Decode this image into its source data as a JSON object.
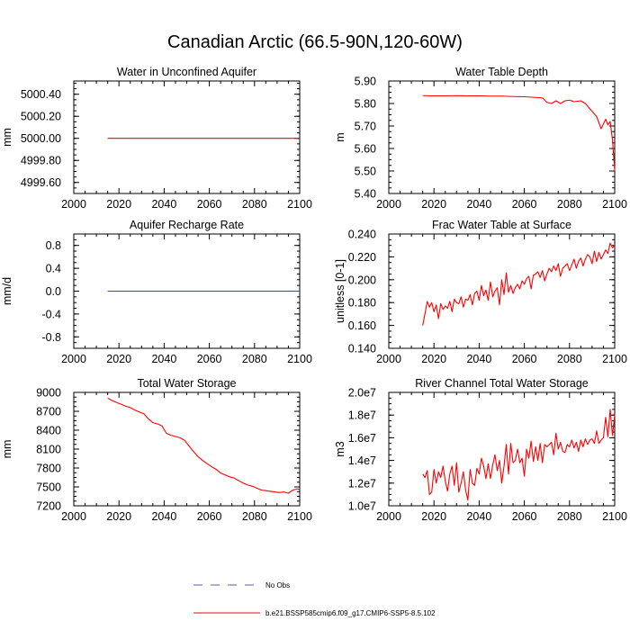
{
  "figure_title": "Canadian Arctic (66.5-90N,120-60W)",
  "colors": {
    "model_line": "#ff0000",
    "obs_line": "#5a5aa8",
    "axis": "#000000"
  },
  "legend": [
    {
      "label": "No Obs",
      "style": "dashed",
      "color": "#5a5aa8"
    },
    {
      "label": "b.e21.BSSP585cmip6.f09_g17.CMIP6-SSP5-8.5.102",
      "style": "solid",
      "color": "#ff0000"
    }
  ],
  "chart_data": [
    {
      "type": "line",
      "title": "Water in Unconfined Aquifer",
      "xlabel": "",
      "ylabel": "mm",
      "xlim": [
        2000,
        2100
      ],
      "ylim": [
        4999.5,
        5000.52
      ],
      "xticks": [
        2000,
        2020,
        2040,
        2060,
        2080,
        2100
      ],
      "yticks": [
        4999.6,
        4999.8,
        5000.0,
        5000.2,
        5000.4
      ],
      "ytick_labels": [
        "4999.60",
        "4999.80",
        "5000.00",
        "5000.20",
        "5000.40"
      ],
      "series": [
        {
          "name": "b.e21.BSSP585cmip6.f09_g17.CMIP6-SSP5-8.5.102",
          "x": [
            2015,
            2100
          ],
          "y": [
            5000.0,
            5000.0
          ]
        }
      ]
    },
    {
      "type": "line",
      "title": "Water Table Depth",
      "xlabel": "",
      "ylabel": "m",
      "xlim": [
        2000,
        2100
      ],
      "ylim": [
        5.4,
        5.9
      ],
      "xticks": [
        2000,
        2020,
        2040,
        2060,
        2080,
        2100
      ],
      "yticks": [
        5.4,
        5.5,
        5.6,
        5.7,
        5.8,
        5.9
      ],
      "ytick_labels": [
        "5.40",
        "5.50",
        "5.60",
        "5.70",
        "5.80",
        "5.90"
      ],
      "series": [
        {
          "name": "b.e21.BSSP585cmip6.f09_g17.CMIP6-SSP5-8.5.102",
          "x": [
            2015,
            2020,
            2025,
            2030,
            2035,
            2040,
            2045,
            2050,
            2055,
            2060,
            2065,
            2068,
            2070,
            2072,
            2074,
            2076,
            2078,
            2080,
            2082,
            2085,
            2087,
            2090,
            2092,
            2094,
            2096,
            2097,
            2098,
            2099,
            2100
          ],
          "y": [
            5.835,
            5.834,
            5.834,
            5.835,
            5.834,
            5.834,
            5.833,
            5.833,
            5.831,
            5.83,
            5.827,
            5.825,
            5.805,
            5.8,
            5.812,
            5.8,
            5.812,
            5.815,
            5.808,
            5.812,
            5.8,
            5.765,
            5.742,
            5.688,
            5.73,
            5.705,
            5.72,
            5.64,
            5.5
          ]
        }
      ]
    },
    {
      "type": "line",
      "title": "Aquifer Recharge Rate",
      "xlabel": "",
      "ylabel": "mm/d",
      "xlim": [
        2000,
        2100
      ],
      "ylim": [
        -1.0,
        1.0
      ],
      "xticks": [
        2000,
        2020,
        2040,
        2060,
        2080,
        2100
      ],
      "yticks": [
        -0.8,
        -0.4,
        0.0,
        0.4,
        0.8
      ],
      "ytick_labels": [
        "-0.8",
        "-0.4",
        "0.0",
        "0.4",
        "0.8"
      ],
      "series": [
        {
          "name": "b.e21.BSSP585cmip6.f09_g17.CMIP6-SSP5-8.5.102",
          "x": [
            2015,
            2100
          ],
          "y": [
            0.0,
            0.0
          ]
        }
      ]
    },
    {
      "type": "line",
      "title": "Frac Water Table at Surface",
      "xlabel": "",
      "ylabel": "unitless [0-1]",
      "xlim": [
        2000,
        2100
      ],
      "ylim": [
        0.14,
        0.24
      ],
      "xticks": [
        2000,
        2020,
        2040,
        2060,
        2080,
        2100
      ],
      "yticks": [
        0.14,
        0.16,
        0.18,
        0.2,
        0.22,
        0.24
      ],
      "ytick_labels": [
        "0.140",
        "0.160",
        "0.180",
        "0.200",
        "0.220",
        "0.240"
      ],
      "series": [
        {
          "name": "b.e21.BSSP585cmip6.f09_g17.CMIP6-SSP5-8.5.102",
          "x": [
            2015,
            2016,
            2017,
            2018,
            2019,
            2020,
            2021,
            2022,
            2023,
            2024,
            2025,
            2026,
            2027,
            2028,
            2029,
            2030,
            2031,
            2032,
            2033,
            2034,
            2035,
            2036,
            2037,
            2038,
            2039,
            2040,
            2041,
            2042,
            2043,
            2044,
            2045,
            2046,
            2047,
            2048,
            2049,
            2050,
            2051,
            2052,
            2053,
            2054,
            2055,
            2056,
            2057,
            2058,
            2059,
            2060,
            2061,
            2062,
            2063,
            2064,
            2065,
            2066,
            2067,
            2068,
            2069,
            2070,
            2071,
            2072,
            2073,
            2074,
            2075,
            2076,
            2077,
            2078,
            2079,
            2080,
            2081,
            2082,
            2083,
            2084,
            2085,
            2086,
            2087,
            2088,
            2089,
            2090,
            2091,
            2092,
            2093,
            2094,
            2095,
            2096,
            2097,
            2098,
            2099,
            2100
          ],
          "y": [
            0.16,
            0.17,
            0.181,
            0.176,
            0.18,
            0.172,
            0.178,
            0.166,
            0.179,
            0.174,
            0.177,
            0.175,
            0.181,
            0.172,
            0.183,
            0.18,
            0.179,
            0.185,
            0.176,
            0.183,
            0.182,
            0.187,
            0.178,
            0.188,
            0.19,
            0.182,
            0.195,
            0.186,
            0.191,
            0.182,
            0.198,
            0.185,
            0.19,
            0.193,
            0.178,
            0.2,
            0.187,
            0.206,
            0.189,
            0.195,
            0.188,
            0.193,
            0.196,
            0.192,
            0.199,
            0.196,
            0.201,
            0.203,
            0.192,
            0.204,
            0.205,
            0.207,
            0.202,
            0.208,
            0.199,
            0.205,
            0.21,
            0.207,
            0.212,
            0.208,
            0.214,
            0.203,
            0.21,
            0.212,
            0.214,
            0.208,
            0.213,
            0.218,
            0.21,
            0.216,
            0.219,
            0.212,
            0.218,
            0.222,
            0.22,
            0.214,
            0.225,
            0.216,
            0.224,
            0.218,
            0.222,
            0.226,
            0.223,
            0.232,
            0.228,
            0.23
          ]
        }
      ]
    },
    {
      "type": "line",
      "title": "Total Water Storage",
      "xlabel": "",
      "ylabel": "mm",
      "xlim": [
        2000,
        2100
      ],
      "ylim": [
        7200,
        9000
      ],
      "xticks": [
        2000,
        2020,
        2040,
        2060,
        2080,
        2100
      ],
      "yticks": [
        7200,
        7500,
        7800,
        8100,
        8400,
        8700,
        9000
      ],
      "ytick_labels": [
        "7200",
        "7500",
        "7800",
        "8100",
        "8400",
        "8700",
        "9000"
      ],
      "series": [
        {
          "name": "b.e21.BSSP585cmip6.f09_g17.CMIP6-SSP5-8.5.102",
          "x": [
            2015,
            2017,
            2019,
            2021,
            2023,
            2025,
            2027,
            2029,
            2031,
            2033,
            2035,
            2037,
            2039,
            2041,
            2043,
            2045,
            2047,
            2049,
            2051,
            2053,
            2055,
            2057,
            2059,
            2061,
            2063,
            2065,
            2067,
            2069,
            2071,
            2073,
            2075,
            2077,
            2079,
            2081,
            2083,
            2085,
            2087,
            2089,
            2091,
            2093,
            2095,
            2097,
            2099,
            2100
          ],
          "y": [
            8910,
            8870,
            8840,
            8810,
            8780,
            8760,
            8720,
            8690,
            8660,
            8580,
            8520,
            8500,
            8470,
            8350,
            8320,
            8300,
            8280,
            8240,
            8150,
            8060,
            7980,
            7920,
            7870,
            7820,
            7780,
            7720,
            7690,
            7660,
            7640,
            7600,
            7560,
            7530,
            7510,
            7480,
            7450,
            7440,
            7430,
            7420,
            7410,
            7420,
            7400,
            7450,
            7470,
            7460
          ]
        }
      ]
    },
    {
      "type": "line",
      "title": "River Channel Total Water Storage",
      "xlabel": "",
      "ylabel": "m3",
      "xlim": [
        2000,
        2100
      ],
      "ylim": [
        10000000.0,
        20000000.0
      ],
      "xticks": [
        2000,
        2020,
        2040,
        2060,
        2080,
        2100
      ],
      "yticks": [
        10000000.0,
        12000000.0,
        14000000.0,
        16000000.0,
        18000000.0,
        20000000.0
      ],
      "ytick_labels": [
        "1.0e7",
        "1.2e7",
        "1.4e7",
        "1.6e7",
        "1.8e7",
        "2.0e7"
      ],
      "series": [
        {
          "name": "b.e21.BSSP585cmip6.f09_g17.CMIP6-SSP5-8.5.102",
          "x": [
            2015,
            2016,
            2017,
            2018,
            2019,
            2020,
            2021,
            2022,
            2023,
            2024,
            2025,
            2026,
            2027,
            2028,
            2029,
            2030,
            2031,
            2032,
            2033,
            2034,
            2035,
            2036,
            2037,
            2038,
            2039,
            2040,
            2041,
            2042,
            2043,
            2044,
            2045,
            2046,
            2047,
            2048,
            2049,
            2050,
            2051,
            2052,
            2053,
            2054,
            2055,
            2056,
            2057,
            2058,
            2059,
            2060,
            2061,
            2062,
            2063,
            2064,
            2065,
            2066,
            2067,
            2068,
            2069,
            2070,
            2071,
            2072,
            2073,
            2074,
            2075,
            2076,
            2077,
            2078,
            2079,
            2080,
            2081,
            2082,
            2083,
            2084,
            2085,
            2086,
            2087,
            2088,
            2089,
            2090,
            2091,
            2092,
            2093,
            2094,
            2095,
            2096,
            2097,
            2098,
            2099,
            2100
          ],
          "y": [
            12.8,
            12.5,
            13.1,
            11.0,
            11.2,
            13.2,
            12.0,
            13.0,
            12.5,
            13.5,
            12.2,
            11.3,
            12.8,
            13.5,
            11.8,
            13.8,
            11.2,
            12.0,
            13.0,
            11.4,
            10.5,
            13.2,
            12.0,
            11.8,
            13.3,
            12.8,
            14.2,
            13.5,
            12.4,
            13.7,
            12.4,
            13.6,
            14.5,
            13.1,
            14.0,
            12.0,
            13.5,
            15.4,
            12.8,
            15.5,
            13.8,
            14.0,
            15.0,
            13.8,
            14.2,
            12.6,
            15.0,
            14.2,
            15.7,
            13.9,
            15.2,
            14.0,
            15.5,
            13.8,
            15.4,
            15.2,
            15.4,
            15.6,
            14.5,
            16.4,
            15.0,
            15.6,
            14.8,
            14.7,
            15.4,
            15.2,
            15.8,
            15.1,
            15.6,
            14.8,
            15.8,
            15.2,
            15.9,
            15.4,
            15.8,
            15.9,
            15.5,
            16.6,
            15.5,
            15.8,
            16.0,
            17.8,
            16.1,
            18.5,
            16.2,
            18.0
          ],
          "value_scale": 1000000
        }
      ]
    }
  ]
}
